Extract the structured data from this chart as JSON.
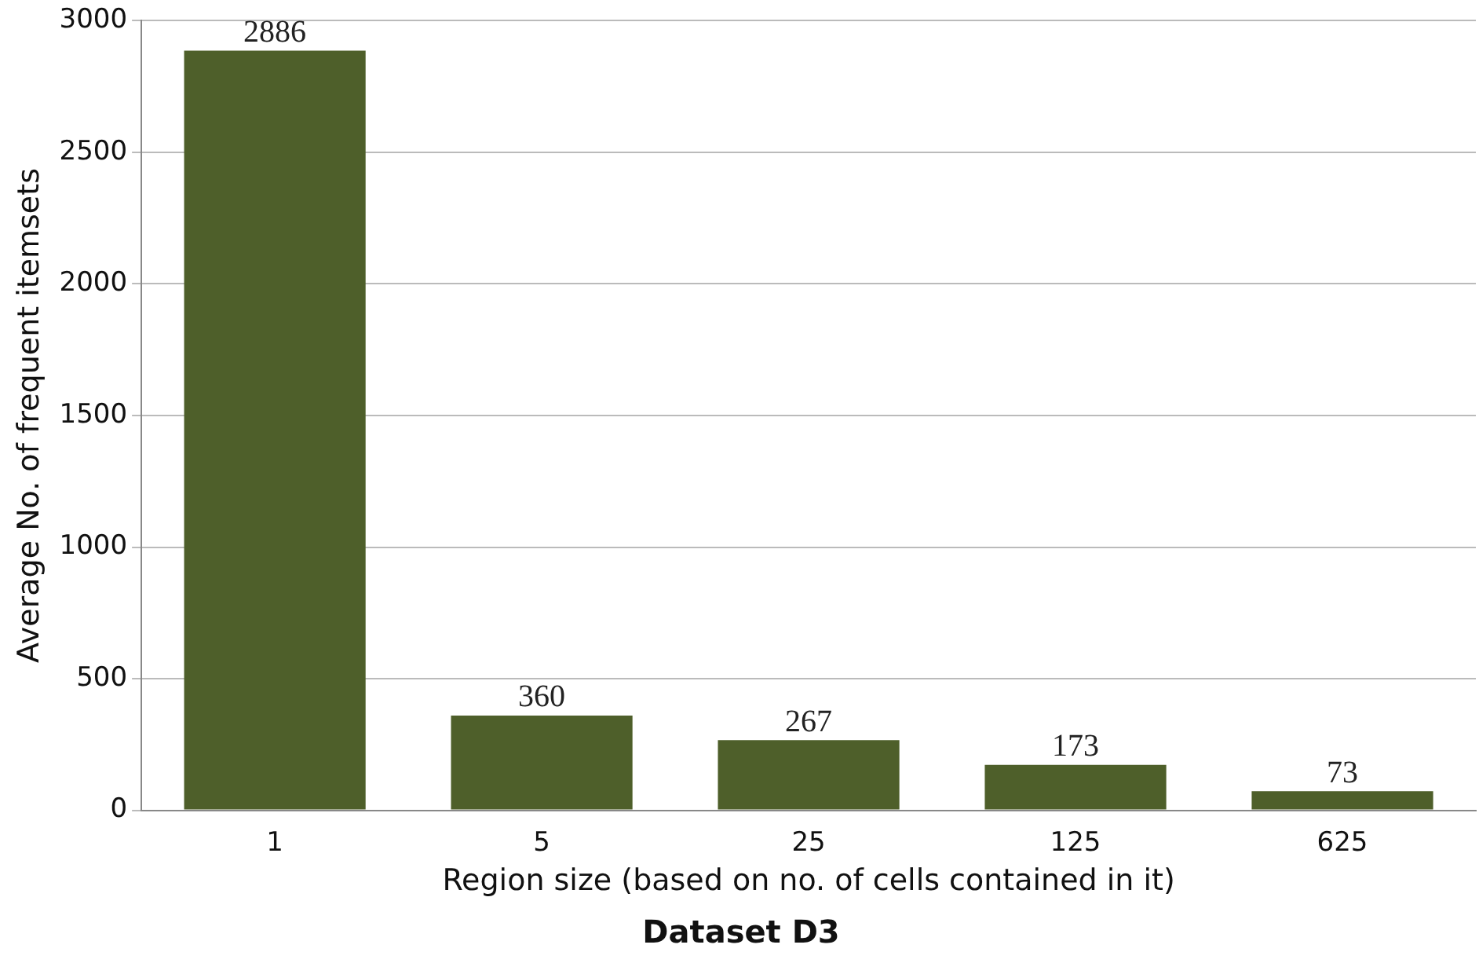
{
  "chart_data": {
    "type": "bar",
    "title": "Dataset D3",
    "xlabel": "Region size (based on no. of cells contained in it)",
    "ylabel": "Average No. of frequent itemsets",
    "categories": [
      "1",
      "5",
      "25",
      "125",
      "625"
    ],
    "values": [
      2886,
      360,
      267,
      173,
      73
    ],
    "color": "#4e5f2a",
    "ylim": [
      0,
      3000
    ],
    "yticks": [
      0,
      500,
      1000,
      1500,
      2000,
      2500,
      3000
    ],
    "grid": "y",
    "data_labels": true,
    "legend": false
  }
}
